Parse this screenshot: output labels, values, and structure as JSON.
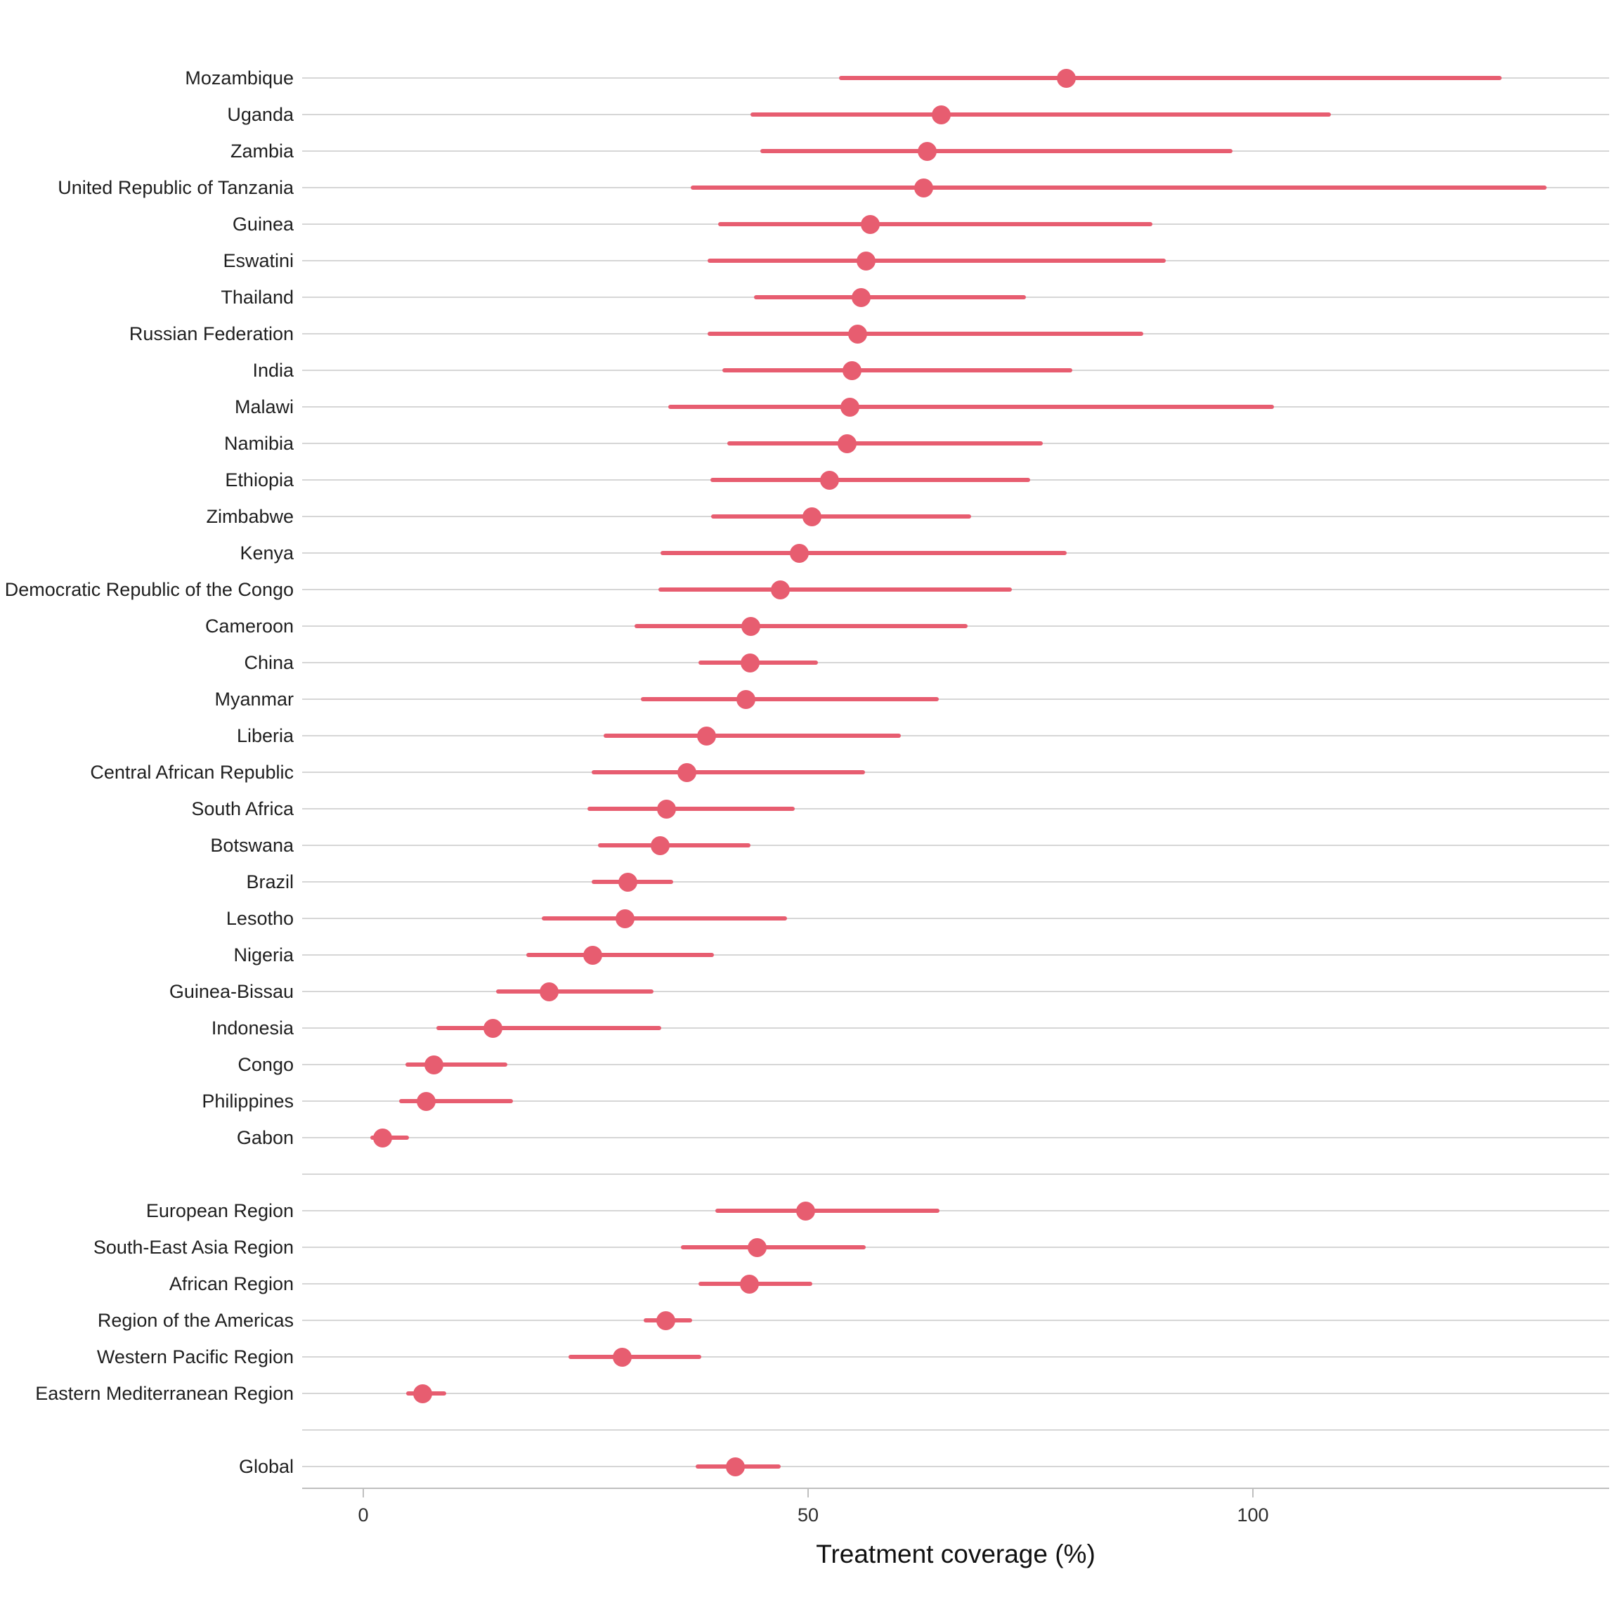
{
  "chart_data": {
    "type": "scatter",
    "subtype": "dot-plot-with-error-bars",
    "orientation": "horizontal",
    "title": "",
    "xlabel": "Treatment coverage (%)",
    "ylabel": "",
    "x_ticks": [
      0,
      50,
      100
    ],
    "xlim": [
      -7,
      140.5
    ],
    "grid": "horizontal-only",
    "legend": "none",
    "marker_color": "#e75d70",
    "gridline_color": "#d6d6d6",
    "axis_line_color": "#bfbfbf",
    "text_color": "#1f1f1f",
    "groups": [
      {
        "name": "countries",
        "rows": [
          {
            "label": "Mozambique",
            "value": 79.0,
            "lo": 53.5,
            "hi": 128.0
          },
          {
            "label": "Uganda",
            "value": 65.0,
            "lo": 43.5,
            "hi": 108.8
          },
          {
            "label": "Zambia",
            "value": 63.4,
            "lo": 44.6,
            "hi": 97.7
          },
          {
            "label": "United Republic of Tanzania",
            "value": 63.0,
            "lo": 36.8,
            "hi": 133.0
          },
          {
            "label": "Guinea",
            "value": 57.0,
            "lo": 39.9,
            "hi": 88.7
          },
          {
            "label": "Eswatini",
            "value": 56.5,
            "lo": 38.7,
            "hi": 90.2
          },
          {
            "label": "Thailand",
            "value": 56.0,
            "lo": 43.9,
            "hi": 74.5
          },
          {
            "label": "Russian Federation",
            "value": 55.6,
            "lo": 38.7,
            "hi": 87.7
          },
          {
            "label": "India",
            "value": 54.9,
            "lo": 40.4,
            "hi": 79.7
          },
          {
            "label": "Malawi",
            "value": 54.7,
            "lo": 34.3,
            "hi": 102.4
          },
          {
            "label": "Namibia",
            "value": 54.4,
            "lo": 40.9,
            "hi": 76.4
          },
          {
            "label": "Ethiopia",
            "value": 52.4,
            "lo": 39.0,
            "hi": 75.0
          },
          {
            "label": "Zimbabwe",
            "value": 50.4,
            "lo": 39.1,
            "hi": 68.3
          },
          {
            "label": "Kenya",
            "value": 49.0,
            "lo": 33.4,
            "hi": 79.1
          },
          {
            "label": "Democratic Republic of the Congo",
            "value": 46.9,
            "lo": 33.2,
            "hi": 72.9
          },
          {
            "label": "Cameroon",
            "value": 43.6,
            "lo": 30.5,
            "hi": 67.9
          },
          {
            "label": "China",
            "value": 43.5,
            "lo": 37.7,
            "hi": 51.1
          },
          {
            "label": "Myanmar",
            "value": 43.0,
            "lo": 31.2,
            "hi": 64.7
          },
          {
            "label": "Liberia",
            "value": 38.6,
            "lo": 27.0,
            "hi": 60.4
          },
          {
            "label": "Central African Republic",
            "value": 36.4,
            "lo": 25.7,
            "hi": 56.4
          },
          {
            "label": "South Africa",
            "value": 34.1,
            "lo": 25.2,
            "hi": 48.5
          },
          {
            "label": "Botswana",
            "value": 33.4,
            "lo": 26.4,
            "hi": 43.5
          },
          {
            "label": "Brazil",
            "value": 29.7,
            "lo": 25.7,
            "hi": 34.8
          },
          {
            "label": "Lesotho",
            "value": 29.4,
            "lo": 20.1,
            "hi": 47.6
          },
          {
            "label": "Nigeria",
            "value": 25.8,
            "lo": 18.3,
            "hi": 39.4
          },
          {
            "label": "Guinea-Bissau",
            "value": 20.9,
            "lo": 14.9,
            "hi": 32.6
          },
          {
            "label": "Indonesia",
            "value": 14.6,
            "lo": 8.2,
            "hi": 33.5
          },
          {
            "label": "Congo",
            "value": 7.9,
            "lo": 4.7,
            "hi": 16.2
          },
          {
            "label": "Philippines",
            "value": 7.1,
            "lo": 4.0,
            "hi": 16.8
          },
          {
            "label": "Gabon",
            "value": 2.2,
            "lo": 0.8,
            "hi": 5.1
          }
        ]
      },
      {
        "name": "who_regions",
        "rows": [
          {
            "label": "European Region",
            "value": 49.7,
            "lo": 39.6,
            "hi": 64.8
          },
          {
            "label": "South-East Asia Region",
            "value": 44.3,
            "lo": 35.7,
            "hi": 56.5
          },
          {
            "label": "African Region",
            "value": 43.4,
            "lo": 37.7,
            "hi": 50.5
          },
          {
            "label": "Region of the Americas",
            "value": 34.0,
            "lo": 31.5,
            "hi": 37.0
          },
          {
            "label": "Western Pacific Region",
            "value": 29.1,
            "lo": 23.1,
            "hi": 38.0
          },
          {
            "label": "Eastern Mediterranean Region",
            "value": 6.7,
            "lo": 4.8,
            "hi": 9.3
          }
        ]
      },
      {
        "name": "global",
        "rows": [
          {
            "label": "Global",
            "value": 41.8,
            "lo": 37.4,
            "hi": 46.9
          }
        ]
      }
    ]
  }
}
